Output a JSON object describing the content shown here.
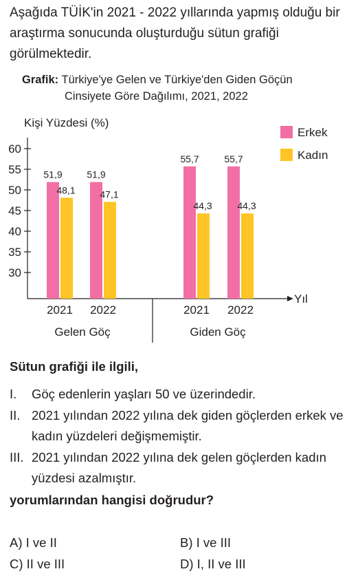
{
  "intro": "Aşağıda TÜİK'in 2021 - 2022 yıllarında yapmış olduğu bir araştırma sonucunda oluşturduğu sütun grafiği görülmektedir.",
  "caption": {
    "label": "Grafik:",
    "line1": "Türkiye'ye Gelen ve Türkiye'den Giden Göçün",
    "line2": "Cinsiyete Göre Dağılımı, 2021, 2022"
  },
  "chart_data": {
    "type": "bar",
    "ylabel": "Kişi Yüzdesi (%)",
    "xlabel": "Yıl",
    "yticks": [
      30,
      35,
      40,
      45,
      50,
      55,
      60
    ],
    "ylim": [
      25,
      62
    ],
    "groups": [
      {
        "label": "Gelen Göç",
        "categories": [
          "2021",
          "2022"
        ]
      },
      {
        "label": "Giden Göç",
        "categories": [
          "2021",
          "2022"
        ]
      }
    ],
    "series": [
      {
        "name": "Erkek",
        "color": "#f26fa6",
        "values": [
          51.9,
          51.9,
          55.7,
          55.7
        ],
        "labels": [
          "51,9",
          "51,9",
          "55,7",
          "55,7"
        ]
      },
      {
        "name": "Kadın",
        "color": "#ffc425",
        "values": [
          48.1,
          47.1,
          44.3,
          44.3
        ],
        "labels": [
          "48,1",
          "47,1",
          "44,3",
          "44,3"
        ]
      }
    ],
    "legend_position": "top-right",
    "grid": false
  },
  "question": {
    "title": "Sütun grafiği ile ilgili,",
    "statements": [
      {
        "num": "I.",
        "text": "Göç edenlerin yaşları 50 ve üzerindedir."
      },
      {
        "num": "II.",
        "text": "2021 yılından 2022 yılına dek giden göçlerden erkek ve kadın yüzdeleri değişmemiştir."
      },
      {
        "num": "III.",
        "text": "2021 yılından 2022 yılına dek gelen göçlerden kadın yüzdesi azalmıştır."
      }
    ],
    "prompt": "yorumlarından hangisi doğrudur?",
    "options": [
      {
        "key": "A)",
        "text": "I ve II"
      },
      {
        "key": "B)",
        "text": "I ve III"
      },
      {
        "key": "C)",
        "text": "II ve III"
      },
      {
        "key": "D)",
        "text": "I, II ve III"
      }
    ]
  }
}
